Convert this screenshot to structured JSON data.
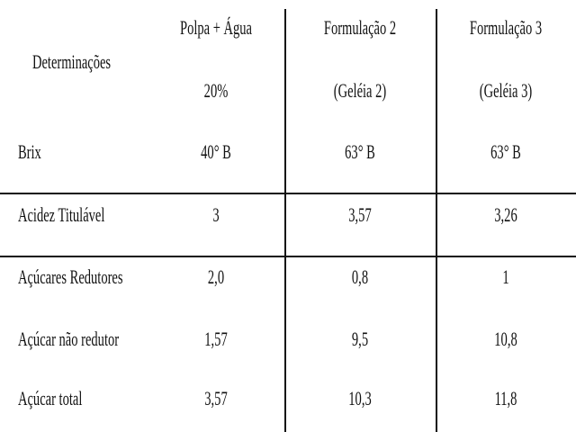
{
  "table": {
    "header": {
      "determinacoes": "Determinações",
      "col1_line1": "Polpa + Água",
      "col1_line2": "20%",
      "col2_line1": "Formulação 2",
      "col2_line2": "(Geléia 2)",
      "col3_line1": "Formulação 3",
      "col3_line2": "(Geléia 3)"
    },
    "rows": [
      {
        "label": "Brix",
        "c1": "40° B",
        "c2": "63° B",
        "c3": "63° B"
      },
      {
        "label": "Acidez Titulável",
        "c1": "3",
        "c2": "3,57",
        "c3": "3,26"
      },
      {
        "label": "Açúcares Redutores",
        "c1": "2,0",
        "c2": "0,8",
        "c3": "1"
      },
      {
        "label": "Açúcar não redutor",
        "c1": "1,57",
        "c2": "9,5",
        "c3": "10,8"
      },
      {
        "label": "Açúcar total",
        "c1": "3,57",
        "c2": "10,3",
        "c3": "11,8"
      }
    ]
  }
}
